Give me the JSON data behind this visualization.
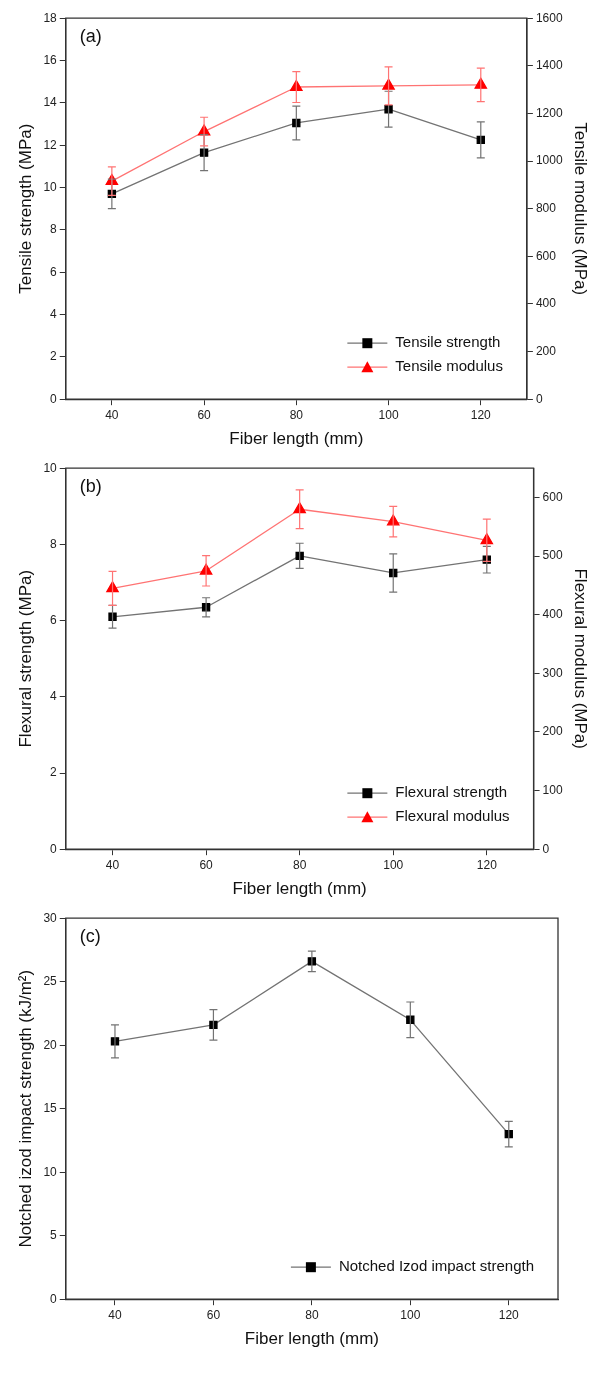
{
  "chart_data": [
    {
      "type": "line",
      "annotations": [
        "(a)"
      ],
      "xlabel": "Fiber length (mm)",
      "ylabel": "Tensile strength (MPa)",
      "y2label": "Tensile modulus (MPa)",
      "x": [
        40,
        60,
        80,
        100,
        120
      ],
      "xlim": [
        30,
        130
      ],
      "xticks": [
        40,
        60,
        80,
        100,
        120
      ],
      "ylim": [
        0,
        18
      ],
      "yticks": [
        0,
        2,
        4,
        6,
        8,
        10,
        12,
        14,
        16,
        18
      ],
      "y2lim": [
        0,
        1600
      ],
      "y2ticks": [
        0,
        200,
        400,
        600,
        800,
        1000,
        1200,
        1400,
        1600
      ],
      "grid": false,
      "legend": "bottom right",
      "series": [
        {
          "name": "Tensile strength",
          "color": "#000000",
          "marker": "square",
          "values": [
            9.7,
            11.65,
            13.05,
            13.7,
            12.25
          ],
          "errors": [
            0.7,
            0.85,
            0.8,
            0.85,
            0.85
          ]
        },
        {
          "name": "Tensile modulus",
          "color": "#ff0000",
          "marker": "triangle",
          "axis": "y2",
          "values": [
            916,
            1124,
            1311,
            1316,
            1320
          ],
          "errors": [
            60,
            60,
            65,
            80,
            70
          ]
        }
      ]
    },
    {
      "type": "line",
      "annotations": [
        "(b)"
      ],
      "xlabel": "Fiber length (mm)",
      "ylabel": "Flexural strength (MPa)",
      "y2label": "Flexural modulus (MPa)",
      "x": [
        40,
        60,
        80,
        100,
        120
      ],
      "xlim": [
        30,
        130
      ],
      "xticks": [
        40,
        60,
        80,
        100,
        120
      ],
      "ylim": [
        0,
        10
      ],
      "yticks": [
        0,
        2,
        4,
        6,
        8,
        10
      ],
      "y2lim": [
        0,
        650
      ],
      "y2ticks": [
        0,
        100,
        200,
        300,
        400,
        500,
        600
      ],
      "grid": false,
      "legend": "bottom right",
      "series": [
        {
          "name": "Flexural strength",
          "color": "#000000",
          "marker": "square",
          "values": [
            6.1,
            6.35,
            7.7,
            7.25,
            7.6
          ],
          "errors": [
            0.3,
            0.25,
            0.33,
            0.5,
            0.35
          ]
        },
        {
          "name": "Flexural modulus",
          "color": "#ff0000",
          "marker": "triangle",
          "axis": "y2",
          "values": [
            445,
            475,
            580,
            559,
            527
          ],
          "errors": [
            29,
            26,
            33,
            26,
            36
          ]
        }
      ]
    },
    {
      "type": "line",
      "annotations": [
        "(c)"
      ],
      "xlabel": "Fiber length (mm)",
      "ylabel": "Notched izod impact strength (kJ/m²)",
      "x": [
        40,
        60,
        80,
        100,
        120
      ],
      "xlim": [
        30,
        130
      ],
      "xticks": [
        40,
        60,
        80,
        100,
        120
      ],
      "ylim": [
        0,
        30
      ],
      "yticks": [
        0,
        5,
        10,
        15,
        20,
        25,
        30
      ],
      "grid": false,
      "legend": "bottom right",
      "series": [
        {
          "name": "Notched Izod impact strength",
          "color": "#000000",
          "marker": "square",
          "values": [
            20.3,
            21.6,
            26.6,
            22.0,
            13.0
          ],
          "errors": [
            1.3,
            1.2,
            0.8,
            1.4,
            1.0
          ]
        }
      ]
    }
  ]
}
